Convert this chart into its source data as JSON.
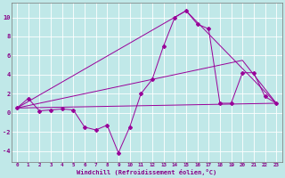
{
  "xlabel": "Windchill (Refroidissement éolien,°C)",
  "x_ticks": [
    0,
    1,
    2,
    3,
    4,
    5,
    6,
    7,
    8,
    9,
    10,
    11,
    12,
    13,
    14,
    15,
    16,
    17,
    18,
    19,
    20,
    21,
    22,
    23
  ],
  "ylim": [
    -5.2,
    11.5
  ],
  "yticks": [
    -4,
    -2,
    0,
    2,
    4,
    6,
    8,
    10
  ],
  "background_color": "#c0e8e8",
  "line_color": "#990099",
  "grid_color": "#ffffff",
  "series1": {
    "x": [
      0,
      1,
      2,
      3,
      4,
      5,
      6,
      7,
      8,
      9,
      10,
      11,
      12,
      13,
      14,
      15,
      16,
      17,
      18,
      19,
      20,
      21,
      22,
      23
    ],
    "y": [
      0.5,
      1.5,
      0.2,
      0.3,
      0.4,
      0.3,
      -1.5,
      -1.8,
      -1.3,
      -4.2,
      -1.5,
      2.0,
      3.5,
      7.0,
      10.0,
      10.7,
      9.3,
      8.8,
      1.0,
      1.0,
      4.2,
      4.2,
      1.7,
      1.0
    ]
  },
  "series2": {
    "x": [
      0,
      15,
      23
    ],
    "y": [
      0.5,
      10.7,
      1.0
    ]
  },
  "series3": {
    "x": [
      0,
      20,
      23
    ],
    "y": [
      0.5,
      5.5,
      1.0
    ]
  },
  "series4": {
    "x": [
      0,
      23
    ],
    "y": [
      0.5,
      1.0
    ]
  }
}
